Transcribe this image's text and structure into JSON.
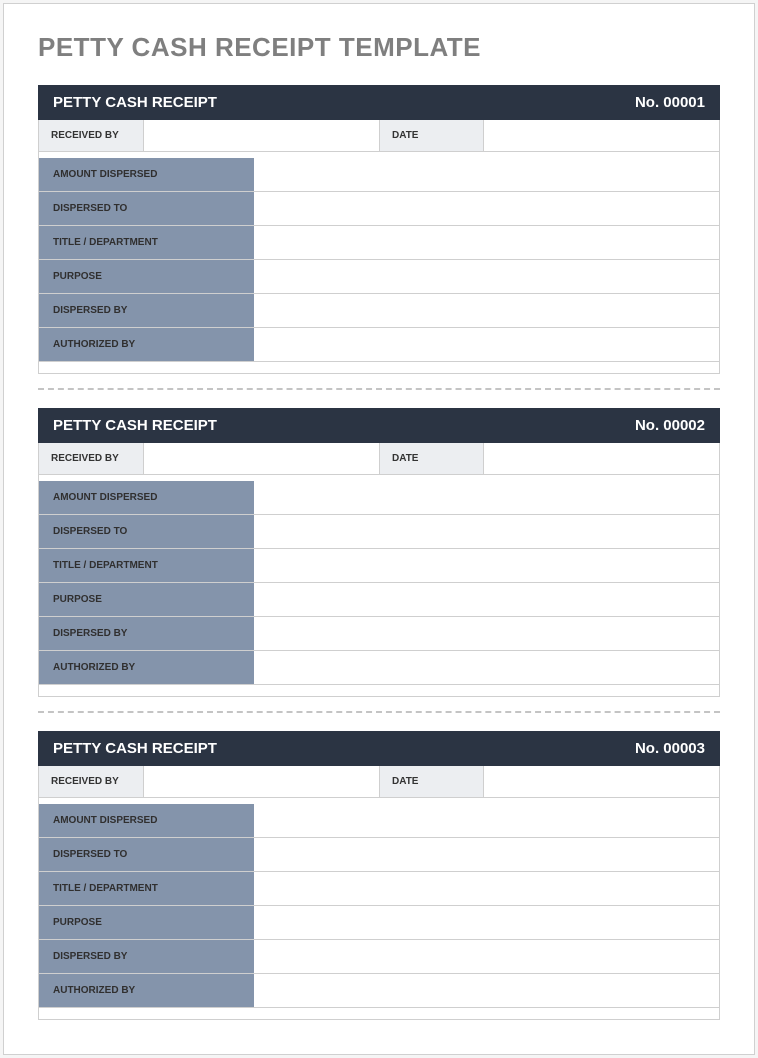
{
  "page_title": "PETTY CASH RECEIPT TEMPLATE",
  "colors": {
    "title_text": "#7f7f7f",
    "header_bg": "#2b3443",
    "header_text": "#ffffff",
    "top_label_bg": "#eceef1",
    "side_label_bg": "#8494ab",
    "side_label_text": "#302f2f",
    "border": "#cfcfcf",
    "page_bg": "#ffffff",
    "divider": "#c4c4c4"
  },
  "labels": {
    "header_title": "PETTY CASH RECEIPT",
    "received_by": "RECEIVED BY",
    "date": "DATE",
    "amount_dispersed": "AMOUNT DISPERSED",
    "dispersed_to": "DISPERSED TO",
    "title_department": "TITLE / DEPARTMENT",
    "purpose": "PURPOSE",
    "dispersed_by": "DISPERSED BY",
    "authorized_by": "AUTHORIZED BY"
  },
  "receipts": [
    {
      "number": "No. 00001",
      "received_by": "",
      "date": "",
      "amount_dispersed": "",
      "dispersed_to": "",
      "title_department": "",
      "purpose": "",
      "dispersed_by": "",
      "authorized_by": ""
    },
    {
      "number": "No. 00002",
      "received_by": "",
      "date": "",
      "amount_dispersed": "",
      "dispersed_to": "",
      "title_department": "",
      "purpose": "",
      "dispersed_by": "",
      "authorized_by": ""
    },
    {
      "number": "No. 00003",
      "received_by": "",
      "date": "",
      "amount_dispersed": "",
      "dispersed_to": "",
      "title_department": "",
      "purpose": "",
      "dispersed_by": "",
      "authorized_by": ""
    }
  ]
}
